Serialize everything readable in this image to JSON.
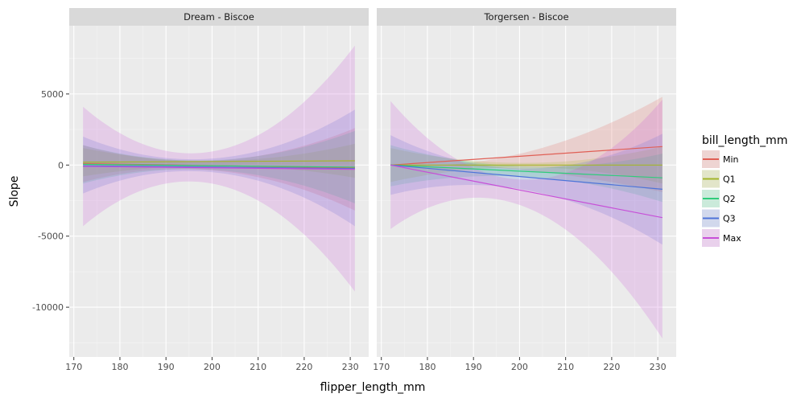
{
  "chart_data": {
    "type": "line",
    "facets": [
      {
        "strip_label": "Dream - Biscoe",
        "series": [
          {
            "name": "Min",
            "color": "#e05f55",
            "x": [
              172,
              231
            ],
            "y": [
              100,
              -200
            ],
            "band_upper": [
              [
                172,
                1400
              ],
              [
                190,
                350
              ],
              [
                231,
                2600
              ]
            ],
            "band_lower": [
              [
                172,
                -1200
              ],
              [
                190,
                -300
              ],
              [
                231,
                -3200
              ]
            ]
          },
          {
            "name": "Q1",
            "color": "#a3b52a",
            "x": [
              172,
              231
            ],
            "y": [
              200,
              300
            ],
            "band_upper": [
              [
                172,
                1200
              ],
              [
                190,
                400
              ],
              [
                231,
                1500
              ]
            ],
            "band_lower": [
              [
                172,
                -800
              ],
              [
                190,
                -150
              ],
              [
                231,
                -900
              ]
            ]
          },
          {
            "name": "Q2",
            "color": "#2fcc7b",
            "x": [
              172,
              231
            ],
            "y": [
              50,
              -150
            ],
            "band_upper": [
              [
                172,
                1400
              ],
              [
                190,
                400
              ],
              [
                231,
                2400
              ]
            ],
            "band_lower": [
              [
                172,
                -1300
              ],
              [
                190,
                -350
              ],
              [
                231,
                -2700
              ]
            ]
          },
          {
            "name": "Q3",
            "color": "#4e74d9",
            "x": [
              172,
              231
            ],
            "y": [
              -50,
              -250
            ],
            "band_upper": [
              [
                172,
                2000
              ],
              [
                190,
                500
              ],
              [
                231,
                3900
              ]
            ],
            "band_lower": [
              [
                172,
                -2000
              ],
              [
                190,
                -500
              ],
              [
                231,
                -4300
              ]
            ]
          },
          {
            "name": "Max",
            "color": "#c74fd8",
            "x": [
              172,
              231
            ],
            "y": [
              -100,
              -300
            ],
            "band_upper": [
              [
                172,
                4100
              ],
              [
                190,
                1000
              ],
              [
                231,
                8400
              ]
            ],
            "band_lower": [
              [
                172,
                -4300
              ],
              [
                190,
                -1300
              ],
              [
                231,
                -8900
              ]
            ]
          }
        ]
      },
      {
        "strip_label": "Torgersen - Biscoe",
        "series": [
          {
            "name": "Min",
            "color": "#e05f55",
            "x": [
              172,
              231
            ],
            "y": [
              0,
              1300
            ],
            "band_upper": [
              [
                172,
                0
              ],
              [
                190,
                200
              ],
              [
                231,
                4800
              ]
            ],
            "band_lower": [
              [
                172,
                0
              ],
              [
                190,
                -100
              ],
              [
                231,
                -1900
              ]
            ]
          },
          {
            "name": "Q1",
            "color": "#a3b52a",
            "x": [
              172,
              231
            ],
            "y": [
              0,
              0
            ],
            "band_upper": [
              [
                172,
                1200
              ],
              [
                190,
                300
              ],
              [
                231,
                1300
              ]
            ],
            "band_lower": [
              [
                172,
                -1200
              ],
              [
                190,
                -300
              ],
              [
                231,
                -1300
              ]
            ]
          },
          {
            "name": "Q2",
            "color": "#2fcc7b",
            "x": [
              172,
              231
            ],
            "y": [
              0,
              -900
            ],
            "band_upper": [
              [
                172,
                1400
              ],
              [
                190,
                200
              ],
              [
                231,
                800
              ]
            ],
            "band_lower": [
              [
                172,
                -1500
              ],
              [
                190,
                -800
              ],
              [
                231,
                -2600
              ]
            ]
          },
          {
            "name": "Q3",
            "color": "#4e74d9",
            "x": [
              172,
              231
            ],
            "y": [
              0,
              -1700
            ],
            "band_upper": [
              [
                172,
                2100
              ],
              [
                190,
                100
              ],
              [
                231,
                2200
              ]
            ],
            "band_lower": [
              [
                172,
                -2100
              ],
              [
                190,
                -1400
              ],
              [
                231,
                -5600
              ]
            ]
          },
          {
            "name": "Max",
            "color": "#c74fd8",
            "x": [
              172,
              231
            ],
            "y": [
              0,
              -3700
            ],
            "band_upper": [
              [
                172,
                4500
              ],
              [
                190,
                -200
              ],
              [
                231,
                4600
              ]
            ],
            "band_lower": [
              [
                172,
                -4500
              ],
              [
                190,
                -2300
              ],
              [
                231,
                -12200
              ]
            ]
          }
        ]
      }
    ],
    "xlabel": "flipper_length_mm",
    "ylabel": "Slope",
    "xlim": [
      169,
      234
    ],
    "ylim": [
      -13500,
      9800
    ],
    "x_ticks": [
      170,
      180,
      190,
      200,
      210,
      220,
      230
    ],
    "y_ticks": [
      5000,
      0,
      -5000,
      -10000
    ],
    "x_tick_labels": [
      "170",
      "180",
      "190",
      "200",
      "210",
      "220",
      "230"
    ],
    "y_tick_labels": [
      "5000",
      "0",
      "-5000",
      "-10000"
    ],
    "legend": {
      "title": "bill_length_mm",
      "placement": "right",
      "entries": [
        {
          "label": "Min",
          "color": "#e05f55"
        },
        {
          "label": "Q1",
          "color": "#a3b52a"
        },
        {
          "label": "Q2",
          "color": "#2fcc7b"
        },
        {
          "label": "Q3",
          "color": "#4e74d9"
        },
        {
          "label": "Max",
          "color": "#c74fd8"
        }
      ]
    },
    "grid": true,
    "panel_background": "#ebebeb",
    "strip_background": "#d9d9d9"
  }
}
